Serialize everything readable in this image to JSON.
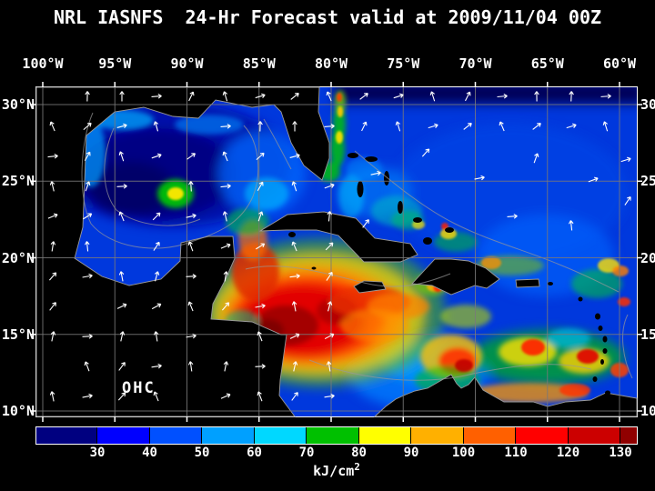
{
  "title": "NRL IASNFS  24-Hr Forecast valid at 2009/11/04 00Z",
  "map": {
    "lon_labels": [
      "100°W",
      "95°W",
      "90°W",
      "85°W",
      "80°W",
      "75°W",
      "70°W",
      "65°W",
      "60°W"
    ],
    "lat_labels": [
      "30°N",
      "25°N",
      "20°N",
      "15°N",
      "10°N"
    ],
    "field_label": "OHC"
  },
  "colorbar": {
    "tick_labels": [
      "30",
      "40",
      "50",
      "60",
      "70",
      "80",
      "90",
      "100",
      "110",
      "120",
      "130"
    ],
    "unit_label": "kJ/cm",
    "unit_exponent": "2",
    "segment_colors": [
      "#000080",
      "#0000ff",
      "#0050ff",
      "#00a0ff",
      "#00d8ff",
      "#00c000",
      "#ffff00",
      "#ffb000",
      "#ff6000",
      "#ff0000",
      "#cc0000",
      "#900000"
    ]
  },
  "colors": {
    "background": "#000000",
    "text": "#ffffff",
    "grid": "#7a7a7a",
    "ocean_base": "#0038dd",
    "land": "#000000",
    "coast_contour": "#999999",
    "vector": "#ffffff"
  }
}
